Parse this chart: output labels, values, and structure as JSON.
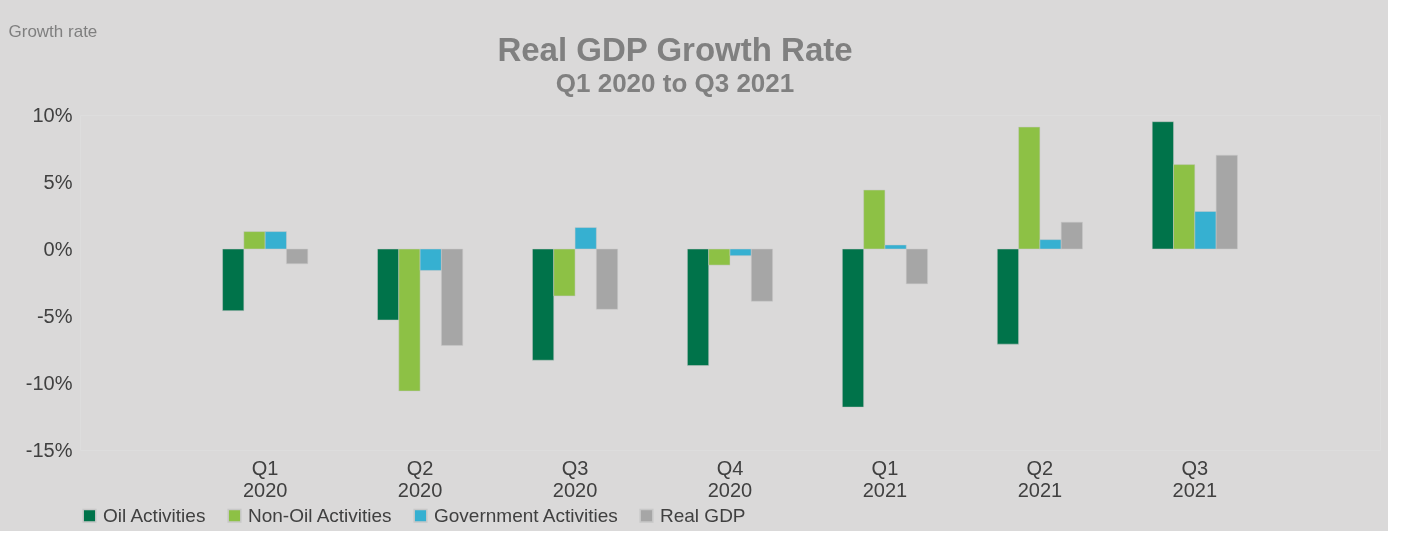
{
  "chart_data": {
    "type": "bar",
    "title": "Real GDP Growth Rate",
    "subtitle": "Q1 2020 to Q3 2021",
    "ylabel": "Growth rate",
    "categories": [
      "Q1 2020",
      "Q2 2020",
      "Q3 2020",
      "Q4 2020",
      "Q1 2021",
      "Q2 2021",
      "Q3 2021"
    ],
    "series": [
      {
        "name": "Oil Activities",
        "color": "#00734a",
        "values": [
          -4.6,
          -5.3,
          -8.3,
          -8.7,
          -11.8,
          -7.1,
          9.5
        ]
      },
      {
        "name": "Non-Oil Activities",
        "color": "#8dc145",
        "values": [
          1.3,
          -10.6,
          -3.5,
          -1.2,
          4.4,
          9.1,
          6.3
        ]
      },
      {
        "name": "Government Activities",
        "color": "#36b0d1",
        "values": [
          1.3,
          -1.6,
          1.6,
          -0.5,
          0.3,
          0.7,
          2.8
        ]
      },
      {
        "name": "Real GDP",
        "color": "#a6a6a6",
        "values": [
          -1.1,
          -7.2,
          -4.5,
          -3.9,
          -2.6,
          2.0,
          7.0
        ]
      }
    ],
    "ylim": [
      -15,
      10
    ],
    "yticks": [
      {
        "value": -15,
        "label": "-15%"
      },
      {
        "value": -10,
        "label": "-10%"
      },
      {
        "value": -5,
        "label": "-5%"
      },
      {
        "value": 0,
        "label": "0%"
      },
      {
        "value": 5,
        "label": "5%"
      },
      {
        "value": 10,
        "label": "10%"
      }
    ],
    "legend": "bottom"
  }
}
